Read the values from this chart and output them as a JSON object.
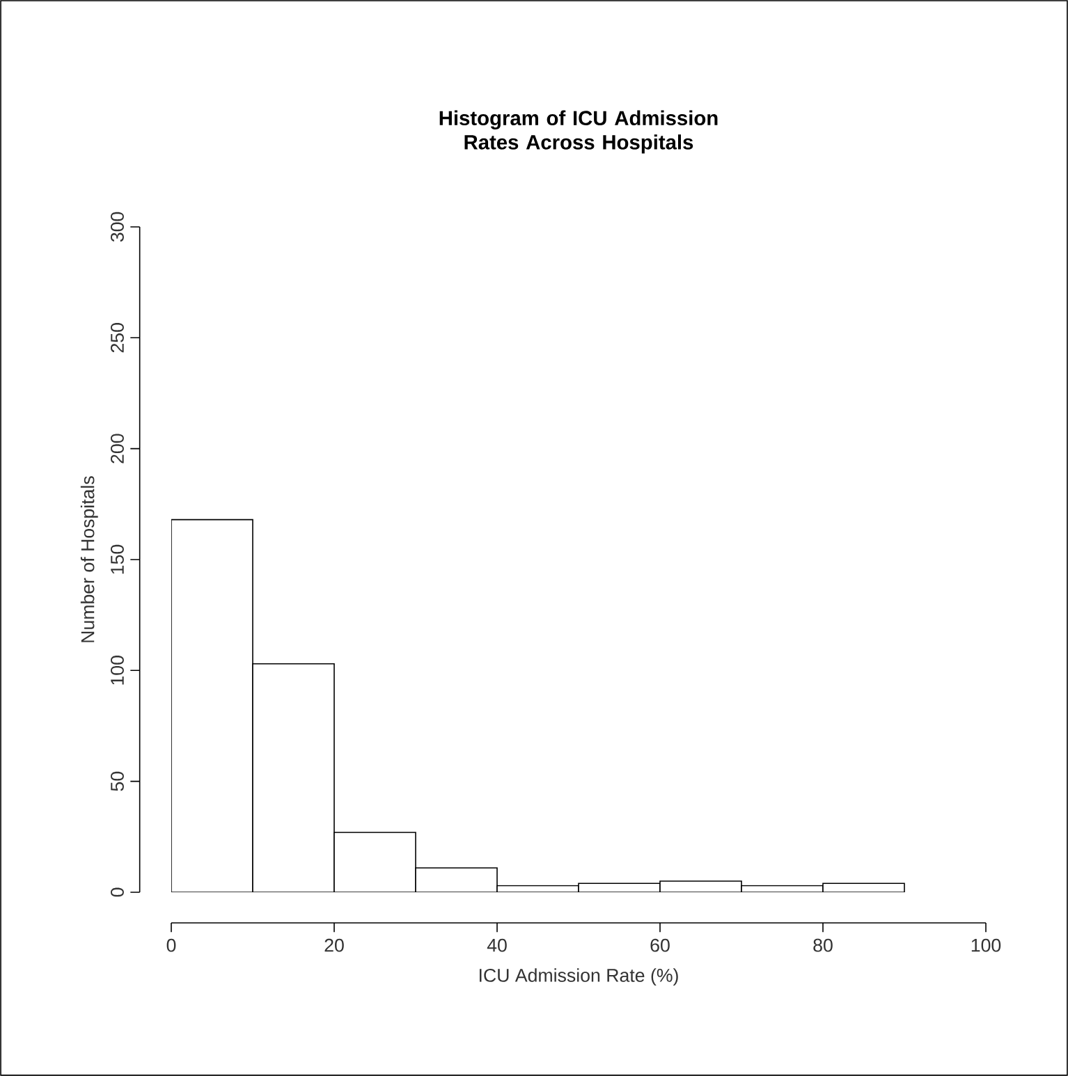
{
  "chart_data": {
    "type": "histogram",
    "title": "Histogram of ICU Admission Rates Across Hospitals",
    "xlabel": "ICU Admission Rate (%)",
    "ylabel": "Number of Hospitals",
    "bins": [
      0,
      10,
      20,
      30,
      40,
      50,
      60,
      70,
      80,
      90
    ],
    "values": [
      168,
      103,
      27,
      11,
      3,
      4,
      5,
      3,
      4
    ],
    "color": "#ffffff",
    "xlim": [
      0,
      100
    ],
    "ylim": [
      0,
      300
    ],
    "xticks": [
      0,
      20,
      40,
      60,
      80,
      100
    ],
    "yticks": [
      0,
      50,
      100,
      150,
      200,
      250,
      300
    ],
    "grid": false
  }
}
